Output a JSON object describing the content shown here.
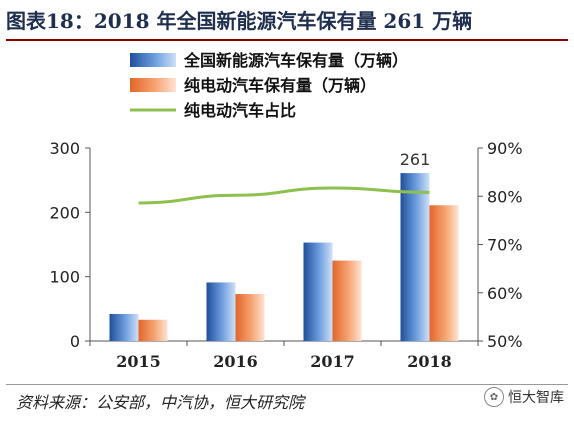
{
  "header": {
    "title": "图表18：2018 年全国新能源汽车保有量 261 万辆"
  },
  "footer": {
    "source": "资料来源：公安部，中汽协，恒大研究院",
    "watermark": "恒大智库"
  },
  "icons": {
    "watermark_icon": "wechat-icon"
  },
  "chart_data": {
    "type": "bar",
    "categories": [
      "2015",
      "2016",
      "2017",
      "2018"
    ],
    "series": [
      {
        "name": "全国新能源汽车保有量（万辆）",
        "type": "bar",
        "axis": "left",
        "values": [
          42,
          91,
          153,
          261
        ],
        "color": "#3f78c8"
      },
      {
        "name": "纯电动汽车保有量（万辆）",
        "type": "bar",
        "axis": "left",
        "values": [
          33,
          73,
          125,
          211
        ],
        "color": "#f08a4b"
      },
      {
        "name": "纯电动汽车占比",
        "type": "line",
        "axis": "right",
        "values": [
          78.6,
          80.2,
          81.7,
          80.8
        ],
        "color": "#8dc04c"
      }
    ],
    "data_labels": [
      {
        "series": 0,
        "index": 3,
        "text": "261"
      }
    ],
    "ylim_left": [
      0,
      300
    ],
    "yticks_left": [
      "0",
      "100",
      "200",
      "300"
    ],
    "ylim_right": [
      50,
      90
    ],
    "yticks_right": [
      "50%",
      "60%",
      "70%",
      "80%",
      "90%"
    ],
    "legend_position": "top-center",
    "grid": false
  }
}
